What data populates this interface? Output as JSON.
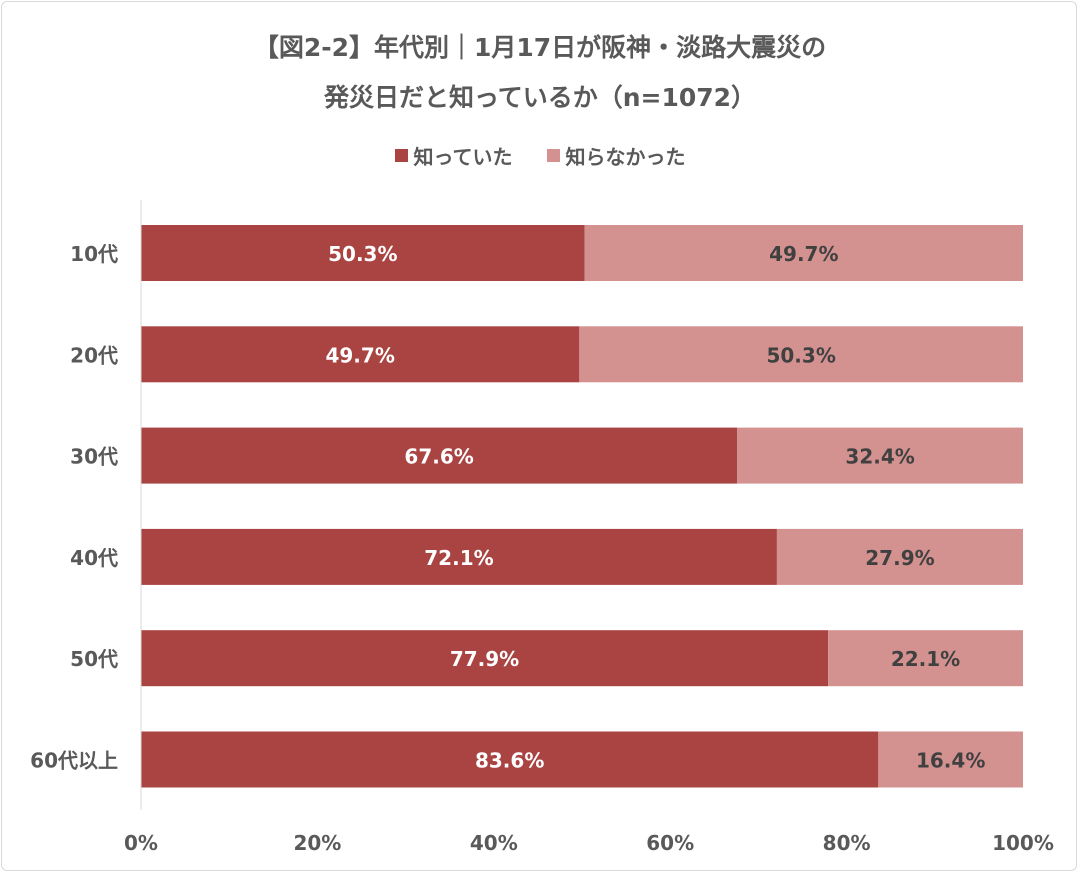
{
  "chart_data": {
    "type": "bar",
    "orientation": "horizontal",
    "stacked": true,
    "title_lines": [
      "【図2-2】年代別｜1月17日が阪神・淡路大震災の",
      "発災日だと知っているか（n=1072）"
    ],
    "categories": [
      "10代",
      "20代",
      "30代",
      "40代",
      "50代",
      "60代以上"
    ],
    "series": [
      {
        "name": "知っていた",
        "color": "#A94442",
        "values": [
          50.3,
          49.7,
          67.6,
          72.1,
          77.9,
          83.6
        ],
        "label_color": "#ffffff"
      },
      {
        "name": "知らなかった",
        "color": "#D39290",
        "values": [
          49.7,
          50.3,
          32.4,
          27.9,
          22.1,
          16.4
        ],
        "label_color": "#404040"
      }
    ],
    "xlim": [
      0,
      100
    ],
    "xticks": [
      "0%",
      "20%",
      "40%",
      "60%",
      "80%",
      "100%"
    ],
    "legend_position": "top",
    "grid": false
  }
}
